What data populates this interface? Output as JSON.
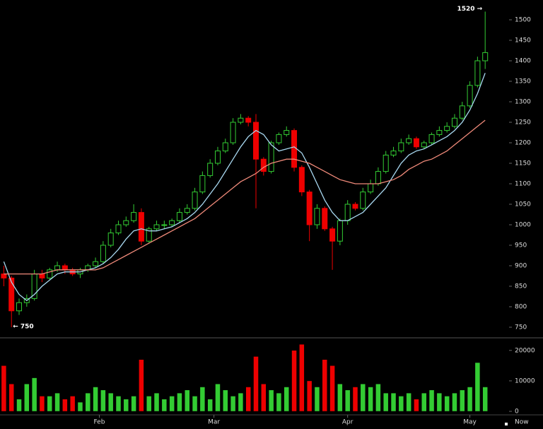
{
  "chart_data": {
    "type": "candlestick",
    "x": [
      0,
      2,
      4,
      6,
      8,
      10,
      12,
      14,
      16,
      18,
      20,
      22,
      24,
      26,
      28,
      30,
      32,
      34,
      36,
      38,
      40,
      42,
      44,
      46,
      48,
      50,
      52,
      54,
      56,
      58,
      60,
      62,
      64,
      66,
      68,
      70,
      72,
      74,
      76,
      78,
      80,
      82,
      84,
      86,
      88,
      90,
      92,
      94,
      96,
      98,
      100,
      102,
      104,
      106,
      108,
      110,
      112,
      114,
      116,
      118,
      120,
      122,
      124,
      126
    ],
    "open": [
      880,
      870,
      790,
      810,
      820,
      880,
      870,
      890,
      900,
      890,
      880,
      890,
      900,
      910,
      950,
      980,
      1000,
      1010,
      1030,
      960,
      990,
      1000,
      1000,
      1010,
      1030,
      1040,
      1080,
      1120,
      1150,
      1180,
      1200,
      1250,
      1260,
      1250,
      1160,
      1130,
      1200,
      1220,
      1230,
      1140,
      1080,
      1000,
      1040,
      990,
      960,
      1010,
      1050,
      1040,
      1080,
      1100,
      1130,
      1170,
      1180,
      1200,
      1210,
      1190,
      1200,
      1220,
      1230,
      1240,
      1260,
      1290,
      1340,
      1400
    ],
    "high": [
      900,
      875,
      820,
      830,
      890,
      890,
      895,
      910,
      905,
      895,
      895,
      905,
      920,
      960,
      990,
      1010,
      1020,
      1050,
      1040,
      995,
      1010,
      1010,
      1015,
      1040,
      1050,
      1090,
      1130,
      1160,
      1190,
      1210,
      1260,
      1270,
      1265,
      1270,
      1165,
      1205,
      1225,
      1240,
      1235,
      1145,
      1085,
      1050,
      1045,
      995,
      1015,
      1060,
      1055,
      1090,
      1110,
      1140,
      1180,
      1190,
      1210,
      1220,
      1215,
      1205,
      1225,
      1240,
      1250,
      1270,
      1300,
      1350,
      1410,
      1520
    ],
    "low": [
      850,
      750,
      780,
      800,
      815,
      860,
      865,
      885,
      880,
      875,
      870,
      885,
      895,
      905,
      945,
      975,
      995,
      1005,
      950,
      955,
      985,
      990,
      995,
      1005,
      1025,
      1035,
      1075,
      1115,
      1145,
      1175,
      1195,
      1245,
      1240,
      1040,
      1120,
      1125,
      1195,
      1215,
      1130,
      1070,
      960,
      990,
      985,
      890,
      950,
      1000,
      1035,
      1035,
      1075,
      1095,
      1125,
      1165,
      1175,
      1195,
      1185,
      1185,
      1195,
      1215,
      1225,
      1235,
      1255,
      1285,
      1335,
      1380
    ],
    "close": [
      870,
      790,
      810,
      820,
      880,
      870,
      890,
      900,
      890,
      880,
      890,
      900,
      910,
      950,
      980,
      1000,
      1010,
      1030,
      960,
      990,
      1000,
      1000,
      1010,
      1030,
      1040,
      1080,
      1120,
      1150,
      1180,
      1200,
      1250,
      1260,
      1250,
      1160,
      1130,
      1200,
      1220,
      1230,
      1140,
      1080,
      1000,
      1040,
      990,
      960,
      1010,
      1050,
      1040,
      1080,
      1100,
      1130,
      1170,
      1180,
      1200,
      1210,
      1190,
      1200,
      1220,
      1230,
      1240,
      1260,
      1290,
      1340,
      1400,
      1420
    ],
    "volume": [
      15000,
      9000,
      4000,
      9000,
      11000,
      5000,
      5000,
      6000,
      4000,
      5000,
      3000,
      6000,
      8000,
      7000,
      6000,
      5000,
      4000,
      5000,
      17000,
      5000,
      6000,
      4000,
      5000,
      6000,
      7000,
      5000,
      8000,
      4000,
      9000,
      7000,
      5000,
      6000,
      8000,
      18000,
      9000,
      7000,
      6000,
      8000,
      20000,
      22000,
      10000,
      8000,
      17000,
      15000,
      9000,
      7000,
      8000,
      9000,
      8000,
      9000,
      6000,
      6000,
      5000,
      6000,
      4000,
      6000,
      7000,
      6000,
      5000,
      6000,
      7000,
      8000,
      16000,
      8000
    ],
    "up_color": "#33cc33",
    "down_color": "#ee0000",
    "series": [
      {
        "color": "#a8d8f0",
        "values": [
          910,
          860,
          830,
          815,
          830,
          850,
          865,
          880,
          885,
          885,
          885,
          890,
          895,
          905,
          920,
          940,
          965,
          985,
          990,
          985,
          985,
          990,
          995,
          1005,
          1015,
          1030,
          1050,
          1075,
          1100,
          1130,
          1160,
          1190,
          1215,
          1230,
          1220,
          1195,
          1180,
          1185,
          1190,
          1175,
          1140,
          1100,
          1060,
          1030,
          1010,
          1010,
          1020,
          1030,
          1050,
          1070,
          1090,
          1120,
          1150,
          1170,
          1180,
          1185,
          1195,
          1205,
          1215,
          1230,
          1250,
          1280,
          1320,
          1370
        ]
      },
      {
        "color": "#f08a7a",
        "values": [
          880,
          880,
          880,
          880,
          880,
          880,
          885,
          890,
          890,
          890,
          890,
          890,
          890,
          895,
          905,
          915,
          925,
          935,
          945,
          955,
          965,
          975,
          985,
          995,
          1005,
          1015,
          1030,
          1045,
          1060,
          1075,
          1090,
          1105,
          1115,
          1125,
          1140,
          1150,
          1155,
          1160,
          1160,
          1155,
          1150,
          1140,
          1130,
          1120,
          1110,
          1105,
          1100,
          1100,
          1100,
          1100,
          1105,
          1110,
          1120,
          1135,
          1145,
          1155,
          1160,
          1170,
          1180,
          1195,
          1210,
          1225,
          1240,
          1255
        ]
      }
    ],
    "xlim": [
      -1,
      128
    ],
    "xticks": [
      {
        "value": 25,
        "label": "Feb"
      },
      {
        "value": 55,
        "label": "Mar"
      },
      {
        "value": 90,
        "label": "Apr"
      },
      {
        "value": 122,
        "label": "May"
      }
    ],
    "ylim": [
      730,
      1540
    ],
    "yticks": [
      750,
      800,
      850,
      900,
      950,
      1000,
      1050,
      1100,
      1150,
      1200,
      1250,
      1300,
      1350,
      1400,
      1450,
      1500
    ],
    "y2lim": [
      0,
      22500
    ],
    "y2ticks": [
      0,
      10000,
      20000
    ],
    "annotations": [
      "1520 →",
      "← 750"
    ],
    "now_label": "Now"
  }
}
